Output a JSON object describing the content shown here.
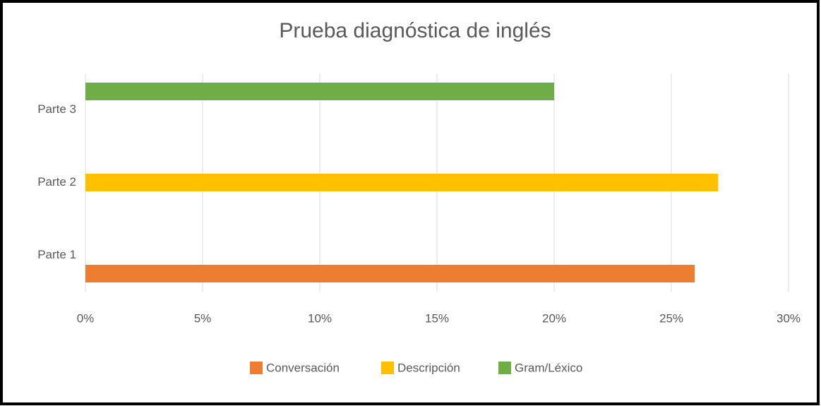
{
  "chart_data": {
    "type": "bar",
    "orientation": "horizontal",
    "title": "Prueba diagnóstica de inglés",
    "categories": [
      "Parte 1",
      "Parte 2",
      "Parte 3"
    ],
    "series": [
      {
        "name": "Conversación",
        "color": "#ed7d31",
        "values": [
          26,
          null,
          null
        ]
      },
      {
        "name": "Descripción",
        "color": "#ffc000",
        "values": [
          null,
          27,
          null
        ]
      },
      {
        "name": "Gram/Léxico",
        "color": "#70ad47",
        "values": [
          null,
          null,
          20
        ]
      }
    ],
    "xlim": [
      0,
      30
    ],
    "xticks": [
      {
        "value": 0,
        "label": "0%"
      },
      {
        "value": 5,
        "label": "5%"
      },
      {
        "value": 10,
        "label": "10%"
      },
      {
        "value": 15,
        "label": "15%"
      },
      {
        "value": 20,
        "label": "20%"
      },
      {
        "value": 25,
        "label": "25%"
      },
      {
        "value": 30,
        "label": "30%"
      }
    ],
    "grid": true,
    "legend": "bottom"
  }
}
